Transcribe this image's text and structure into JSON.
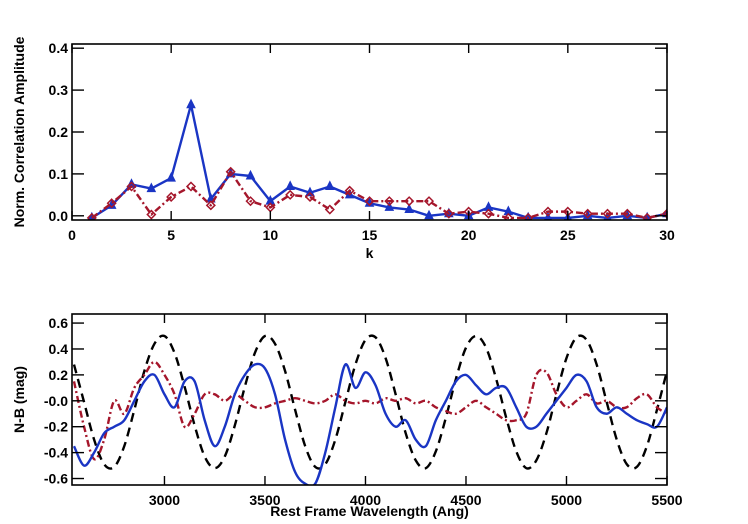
{
  "chart_data": [
    {
      "type": "line",
      "x_label": "k",
      "y_label": "Norm. Correlation Amplitude",
      "x": [
        1,
        2,
        3,
        4,
        5,
        6,
        7,
        8,
        9,
        10,
        11,
        12,
        13,
        14,
        15,
        16,
        17,
        18,
        19,
        20,
        21,
        22,
        23,
        24,
        25,
        26,
        27,
        28,
        29,
        30
      ],
      "xlim": [
        0,
        30
      ],
      "xticks": [
        0,
        5,
        10,
        15,
        20,
        25,
        30
      ],
      "ylim": [
        -0.01,
        0.41
      ],
      "yticks": [
        {
          "value": 0,
          "label": "0.0"
        },
        0.1,
        0.2,
        0.3,
        0.4
      ],
      "series": [
        {
          "color": "#1a35c4",
          "line_style": "solid",
          "marker": "triangle",
          "values": [
            -0.005,
            0.025,
            0.075,
            0.065,
            0.09,
            0.265,
            0.04,
            0.1,
            0.095,
            0.035,
            0.07,
            0.055,
            0.07,
            0.05,
            0.03,
            0.02,
            0.015,
            0.0,
            0.005,
            0.0,
            0.02,
            0.01,
            -0.005,
            -0.005,
            -0.005,
            0.0,
            -0.005,
            0.0,
            -0.005,
            0.005
          ]
        },
        {
          "color": "#a5162b",
          "line_style": "dashdot",
          "marker": "diamond",
          "values": [
            -0.005,
            0.03,
            0.07,
            0.003,
            0.045,
            0.07,
            0.025,
            0.105,
            0.035,
            0.02,
            0.05,
            0.045,
            0.015,
            0.06,
            0.035,
            0.035,
            0.035,
            0.035,
            0.005,
            0.01,
            0.005,
            -0.005,
            -0.005,
            0.01,
            0.01,
            0.005,
            0.005,
            0.005,
            -0.005,
            0.005
          ]
        }
      ]
    },
    {
      "type": "line",
      "x_label": "Rest Frame Wavelength (Ang)",
      "y_label": "N-B (mag)",
      "x": [
        2550,
        2600,
        2650,
        2700,
        2750,
        2800,
        2850,
        2900,
        2950,
        3000,
        3050,
        3100,
        3150,
        3200,
        3250,
        3300,
        3350,
        3400,
        3450,
        3500,
        3550,
        3600,
        3650,
        3700,
        3750,
        3800,
        3850,
        3900,
        3950,
        4000,
        4050,
        4100,
        4150,
        4200,
        4250,
        4300,
        4350,
        4400,
        4450,
        4500,
        4550,
        4600,
        4650,
        4700,
        4750,
        4800,
        4850,
        4900,
        4950,
        5000,
        5050,
        5100,
        5150,
        5200,
        5250,
        5300,
        5350,
        5400,
        5450,
        5500
      ],
      "xlim": [
        2540,
        5500
      ],
      "xticks": [
        3000,
        3500,
        4000,
        4500,
        5000,
        5500
      ],
      "ylim": [
        -0.65,
        0.67
      ],
      "yticks": [
        -0.6,
        -0.4,
        -0.2,
        {
          "value": 0,
          "label": "-0.0"
        },
        0.2,
        0.4,
        0.6
      ],
      "series": [
        {
          "color": "#000000",
          "line_style": "dash",
          "marker": "none",
          "values": [
            0.28,
            -0.01,
            -0.3,
            -0.49,
            -0.51,
            -0.35,
            -0.07,
            0.23,
            0.44,
            0.5,
            0.37,
            0.11,
            -0.19,
            -0.43,
            -0.52,
            -0.43,
            -0.19,
            0.11,
            0.37,
            0.5,
            0.44,
            0.23,
            -0.07,
            -0.35,
            -0.51,
            -0.49,
            -0.3,
            -0.01,
            0.28,
            0.47,
            0.49,
            0.33,
            0.05,
            -0.25,
            -0.46,
            -0.52,
            -0.39,
            -0.13,
            0.17,
            0.41,
            0.5,
            0.41,
            0.17,
            -0.13,
            -0.39,
            -0.52,
            -0.46,
            -0.25,
            0.05,
            0.33,
            0.49,
            0.47,
            0.28,
            -0.01,
            -0.3,
            -0.49,
            -0.51,
            -0.35,
            -0.07,
            0.23
          ]
        },
        {
          "color": "#a5162b",
          "line_style": "dashdot",
          "marker": "none",
          "values": [
            0.15,
            -0.2,
            -0.45,
            -0.3,
            0.0,
            -0.1,
            0.1,
            0.2,
            0.3,
            0.2,
            0.05,
            -0.2,
            -0.1,
            0.05,
            0.05,
            0.0,
            0.05,
            0.0,
            -0.05,
            -0.05,
            -0.02,
            0.0,
            0.02,
            0.0,
            -0.02,
            0.0,
            0.05,
            0.0,
            -0.02,
            0.0,
            -0.02,
            0.02,
            0.0,
            0.02,
            -0.02,
            0.0,
            -0.05,
            -0.08,
            -0.1,
            -0.05,
            0.0,
            -0.05,
            -0.1,
            -0.15,
            -0.15,
            -0.1,
            0.2,
            0.22,
            0.05,
            -0.05,
            0.0,
            0.05,
            -0.02,
            0.0,
            -0.05,
            -0.05,
            0.02,
            0.05,
            -0.05,
            -0.1
          ]
        },
        {
          "color": "#1a35c4",
          "line_style": "solid",
          "marker": "none",
          "values": [
            -0.35,
            -0.5,
            -0.4,
            -0.25,
            -0.2,
            -0.15,
            0.0,
            0.15,
            0.2,
            0.05,
            -0.05,
            0.15,
            0.15,
            -0.15,
            -0.35,
            -0.2,
            0.05,
            0.2,
            0.28,
            0.25,
            0.05,
            -0.3,
            -0.55,
            -0.64,
            -0.64,
            -0.4,
            -0.05,
            0.28,
            0.1,
            0.22,
            0.12,
            -0.1,
            -0.2,
            -0.15,
            -0.3,
            -0.35,
            -0.15,
            0.0,
            0.15,
            0.2,
            0.12,
            0.05,
            0.1,
            0.1,
            -0.05,
            -0.2,
            -0.2,
            -0.1,
            0.0,
            0.1,
            0.2,
            0.15,
            -0.05,
            -0.1,
            -0.05,
            -0.1,
            -0.15,
            -0.18,
            -0.2,
            -0.05
          ]
        }
      ]
    }
  ]
}
